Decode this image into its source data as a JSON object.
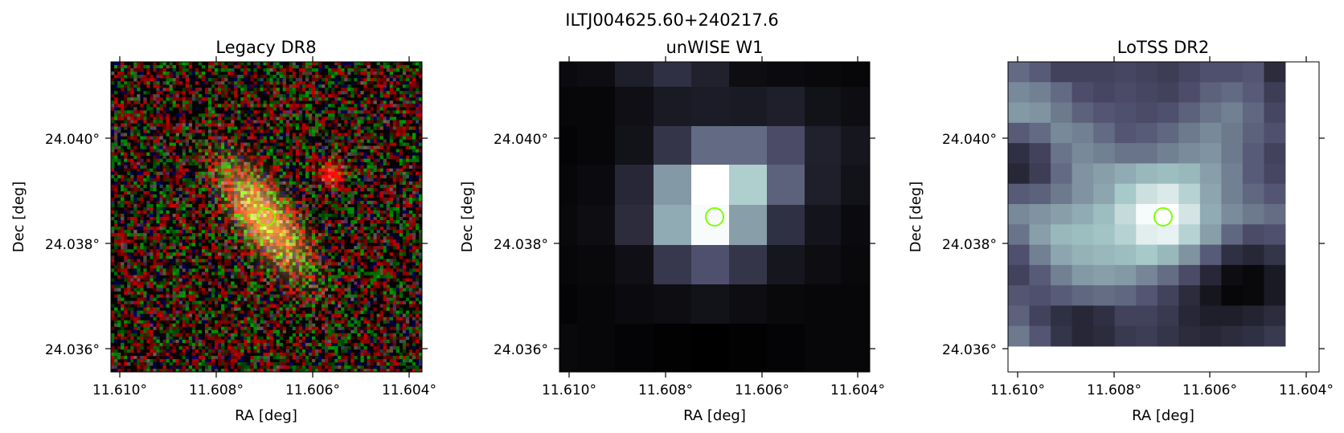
{
  "figure": {
    "title": "ILTJ004625.60+240217.6"
  },
  "panels": [
    {
      "id": "legacy",
      "title": "Legacy DR8",
      "xlabel": "RA [deg]",
      "ylabel": "Dec [deg]",
      "x_ticks": [
        "11.610°",
        "11.608°",
        "11.606°",
        "11.604°"
      ],
      "y_ticks": [
        "24.040°",
        "24.038°",
        "24.036°"
      ],
      "image_kind": "rgb-optical",
      "marker_color": "#7fff00"
    },
    {
      "id": "unwise",
      "title": "unWISE W1",
      "xlabel": "RA [deg]",
      "ylabel": "Dec [deg]",
      "x_ticks": [
        "11.610°",
        "11.608°",
        "11.606°",
        "11.604°"
      ],
      "y_ticks": [
        "24.040°",
        "24.038°",
        "24.036°"
      ],
      "image_kind": "bone-colormap",
      "marker_color": "#7fff00"
    },
    {
      "id": "lotss",
      "title": "LoTSS DR2",
      "xlabel": "RA [deg]",
      "ylabel": "Dec [deg]",
      "x_ticks": [
        "11.610°",
        "11.608°",
        "11.606°",
        "11.604°"
      ],
      "y_ticks": [
        "24.040°",
        "24.038°",
        "24.036°"
      ],
      "image_kind": "bone-colormap",
      "marker_color": "#7fff00"
    }
  ]
}
